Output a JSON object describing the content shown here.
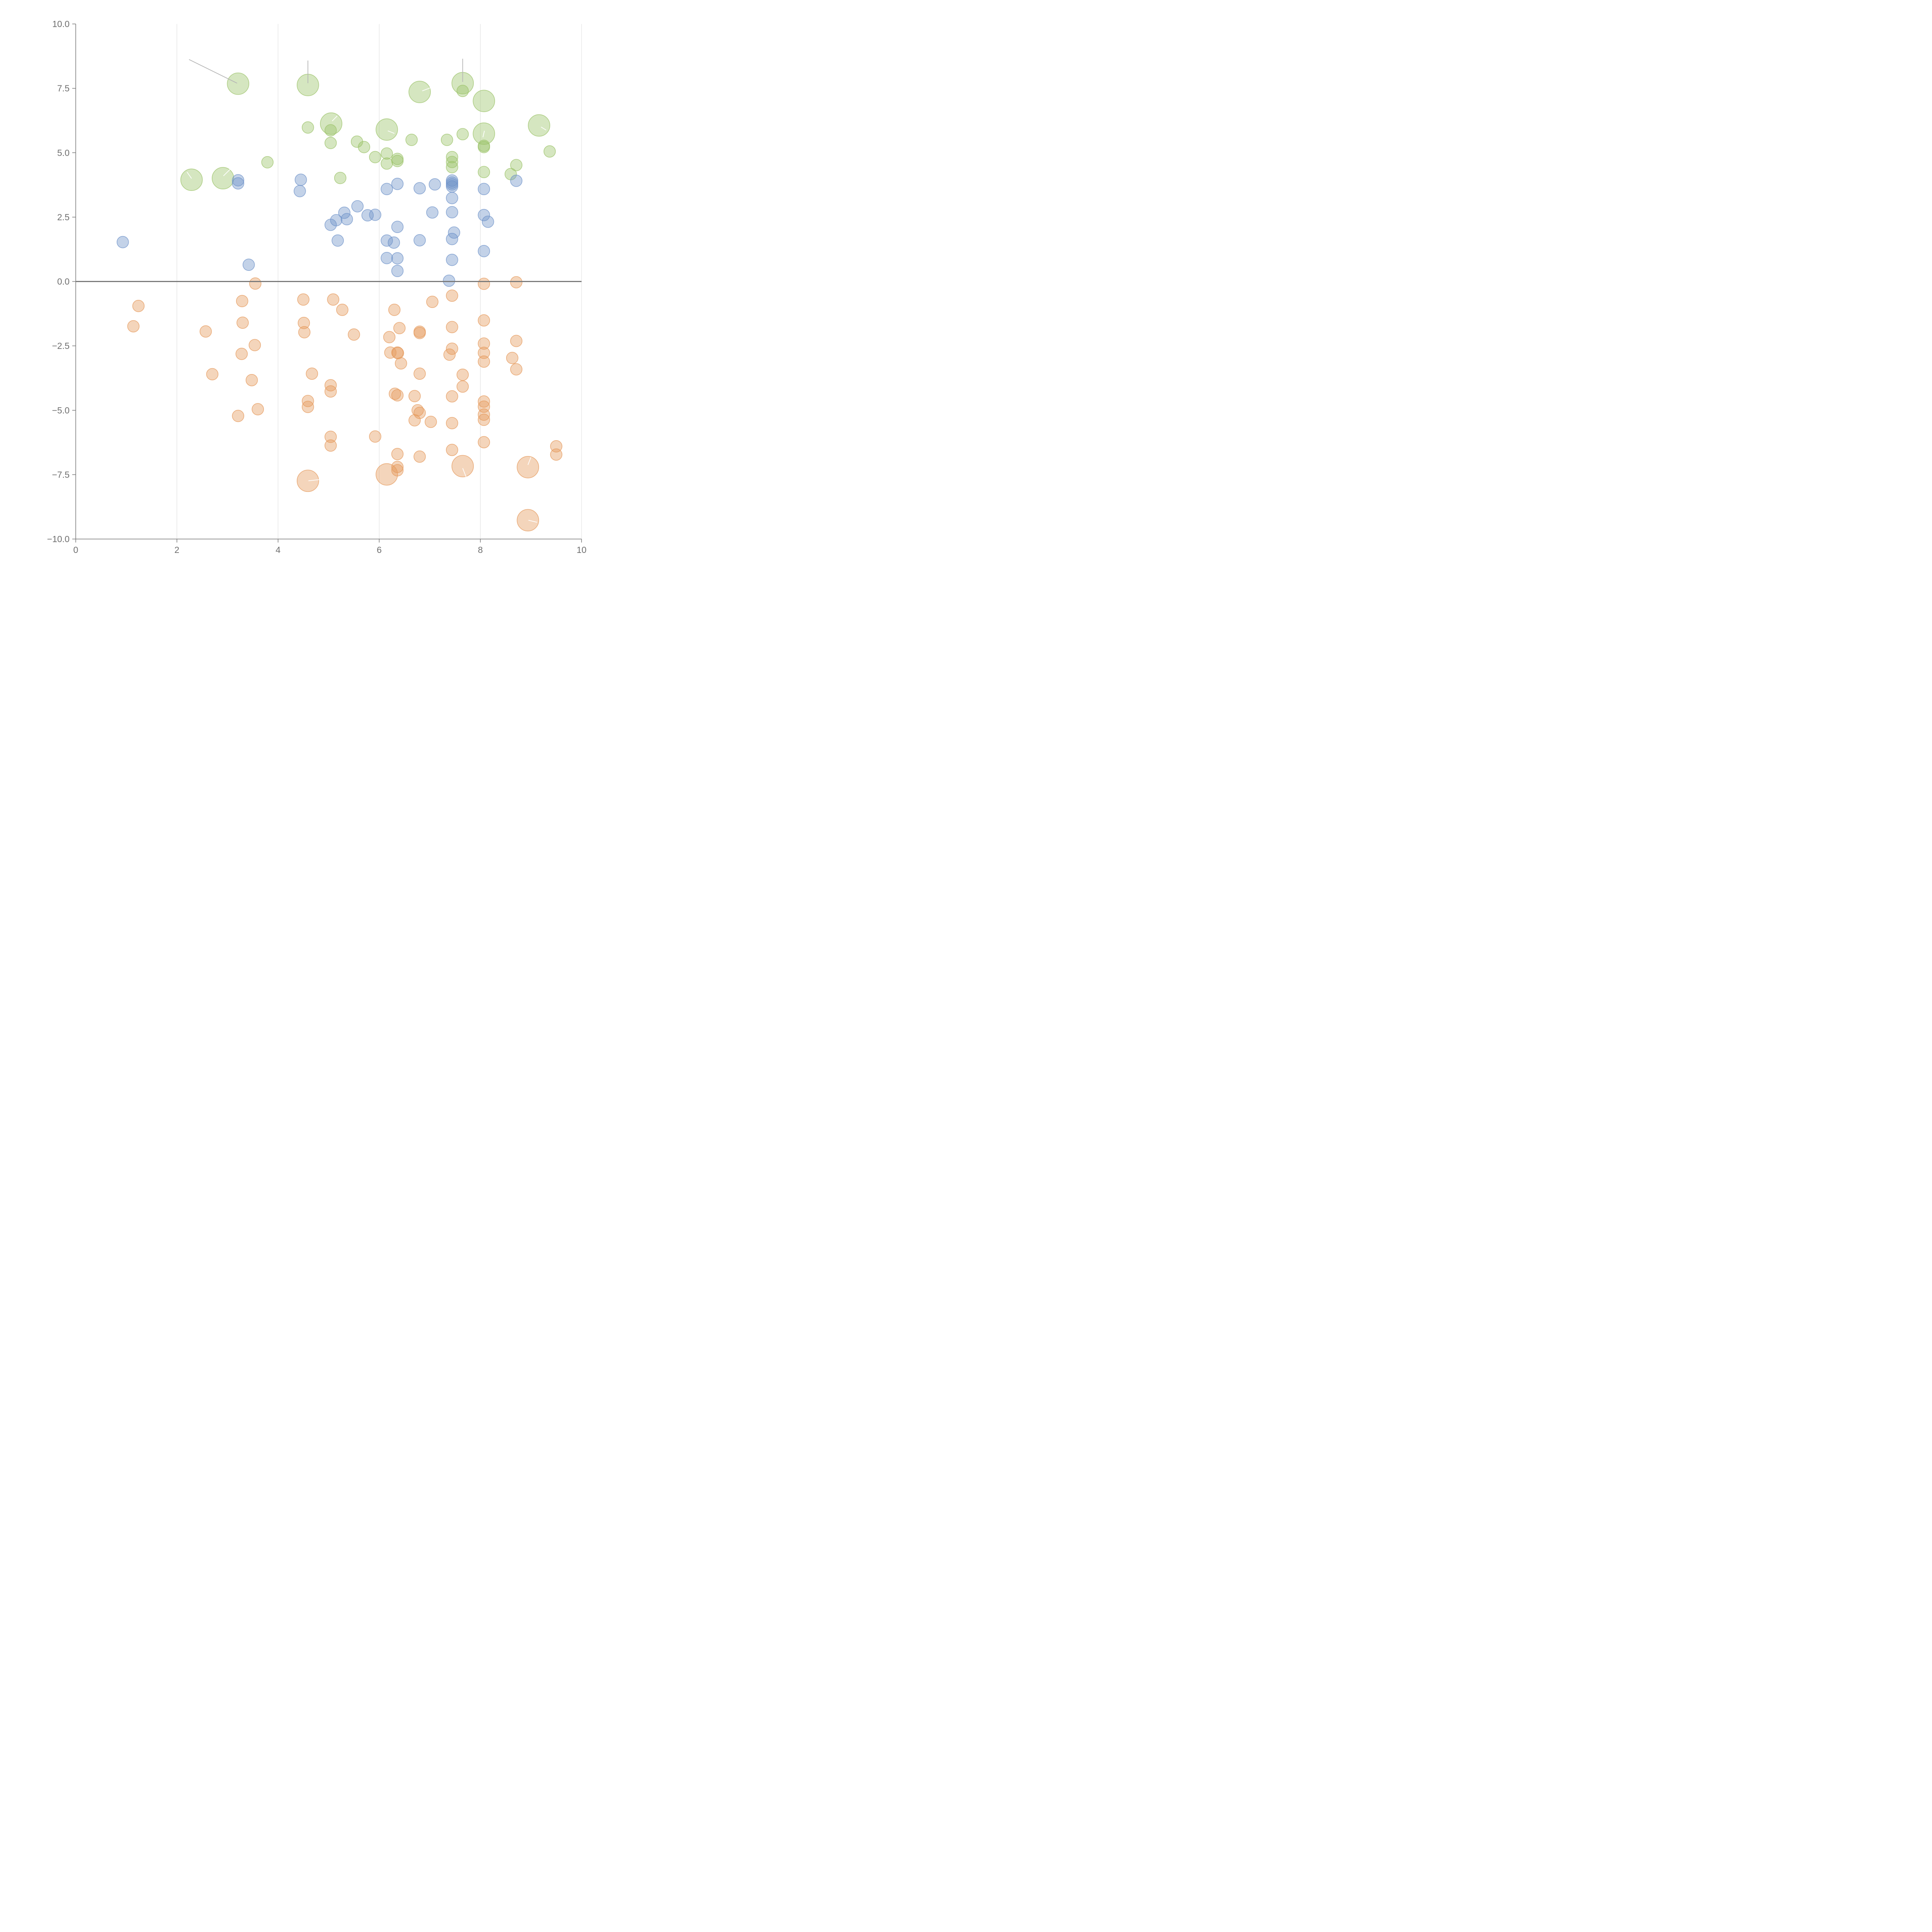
{
  "chart_data": {
    "type": "scatter",
    "subtype": "bubble",
    "title": "",
    "xlabel": "",
    "ylabel": "",
    "xlim": [
      0,
      10
    ],
    "ylim": [
      -10,
      10
    ],
    "x_ticks": [
      0,
      2,
      4,
      6,
      8,
      10
    ],
    "y_ticks": [
      -10,
      -7.5,
      -5,
      -2.5,
      0,
      2.5,
      5,
      7.5,
      10
    ],
    "x_tick_labels": [
      "0",
      "2",
      "4",
      "6",
      "8",
      "10"
    ],
    "y_tick_labels": [
      "−10.0",
      "−7.5",
      "−5.0",
      "−2.5",
      "0.0",
      "2.5",
      "5.0",
      "7.5",
      "10.0"
    ],
    "vertical_grid": true,
    "zero_line": true,
    "legend": "none",
    "colors": {
      "green": "#9cc36a",
      "blue": "#6f93c9",
      "orange": "#e59a5c",
      "axis": "#777777",
      "grid": "#dcdcdc"
    },
    "series": [
      {
        "name": "green",
        "color": "#9cc36a",
        "points": [
          {
            "x": 3.21,
            "y": 7.68,
            "r": 2
          },
          {
            "x": 4.59,
            "y": 7.63,
            "r": 2
          },
          {
            "x": 6.8,
            "y": 7.36,
            "r": 2
          },
          {
            "x": 7.65,
            "y": 7.7,
            "r": 2
          },
          {
            "x": 7.65,
            "y": 7.4,
            "r": 0
          },
          {
            "x": 8.07,
            "y": 7.01,
            "r": 2
          },
          {
            "x": 5.05,
            "y": 6.13,
            "r": 2
          },
          {
            "x": 4.59,
            "y": 5.98,
            "r": 0
          },
          {
            "x": 6.15,
            "y": 5.9,
            "r": 2
          },
          {
            "x": 5.04,
            "y": 5.87,
            "r": 0
          },
          {
            "x": 8.07,
            "y": 5.74,
            "r": 2
          },
          {
            "x": 9.16,
            "y": 6.06,
            "r": 2
          },
          {
            "x": 7.65,
            "y": 5.72,
            "r": 0
          },
          {
            "x": 6.64,
            "y": 5.5,
            "r": 0
          },
          {
            "x": 7.34,
            "y": 5.5,
            "r": 0
          },
          {
            "x": 5.56,
            "y": 5.43,
            "r": 0
          },
          {
            "x": 5.04,
            "y": 5.38,
            "r": 0
          },
          {
            "x": 5.7,
            "y": 5.22,
            "r": 0
          },
          {
            "x": 8.07,
            "y": 5.27,
            "r": 0
          },
          {
            "x": 8.07,
            "y": 5.22,
            "r": 0
          },
          {
            "x": 9.37,
            "y": 5.05,
            "r": 0
          },
          {
            "x": 6.15,
            "y": 4.97,
            "r": 0
          },
          {
            "x": 5.92,
            "y": 4.83,
            "r": 0
          },
          {
            "x": 7.44,
            "y": 4.83,
            "r": 0
          },
          {
            "x": 6.36,
            "y": 4.76,
            "r": 0
          },
          {
            "x": 6.36,
            "y": 4.68,
            "r": 0
          },
          {
            "x": 7.44,
            "y": 4.64,
            "r": 0
          },
          {
            "x": 6.15,
            "y": 4.58,
            "r": 0
          },
          {
            "x": 3.79,
            "y": 4.63,
            "r": 0
          },
          {
            "x": 8.71,
            "y": 4.52,
            "r": 0
          },
          {
            "x": 7.44,
            "y": 4.44,
            "r": 0
          },
          {
            "x": 8.07,
            "y": 4.25,
            "r": 0
          },
          {
            "x": 8.6,
            "y": 4.17,
            "r": 0
          },
          {
            "x": 5.23,
            "y": 4.02,
            "r": 0
          },
          {
            "x": 2.91,
            "y": 4.01,
            "r": 2
          },
          {
            "x": 2.29,
            "y": 3.95,
            "r": 2
          }
        ]
      },
      {
        "name": "blue",
        "color": "#6f93c9",
        "points": [
          {
            "x": 3.21,
            "y": 3.93,
            "r": 0
          },
          {
            "x": 3.21,
            "y": 3.81,
            "r": 0
          },
          {
            "x": 4.45,
            "y": 3.95,
            "r": 0
          },
          {
            "x": 4.43,
            "y": 3.51,
            "r": 0
          },
          {
            "x": 6.36,
            "y": 3.79,
            "r": 0
          },
          {
            "x": 6.15,
            "y": 3.59,
            "r": 0
          },
          {
            "x": 6.8,
            "y": 3.62,
            "r": 0
          },
          {
            "x": 7.1,
            "y": 3.77,
            "r": 0
          },
          {
            "x": 7.44,
            "y": 3.92,
            "r": 0
          },
          {
            "x": 7.44,
            "y": 3.84,
            "r": 0
          },
          {
            "x": 7.44,
            "y": 3.77,
            "r": 0
          },
          {
            "x": 7.44,
            "y": 3.69,
            "r": 0
          },
          {
            "x": 8.71,
            "y": 3.91,
            "r": 0
          },
          {
            "x": 8.07,
            "y": 3.59,
            "r": 0
          },
          {
            "x": 7.44,
            "y": 3.24,
            "r": 0
          },
          {
            "x": 5.57,
            "y": 2.92,
            "r": 0
          },
          {
            "x": 5.31,
            "y": 2.67,
            "r": 0
          },
          {
            "x": 7.05,
            "y": 2.68,
            "r": 0
          },
          {
            "x": 7.44,
            "y": 2.69,
            "r": 0
          },
          {
            "x": 5.92,
            "y": 2.59,
            "r": 0
          },
          {
            "x": 5.77,
            "y": 2.57,
            "r": 0
          },
          {
            "x": 8.07,
            "y": 2.58,
            "r": 0
          },
          {
            "x": 5.36,
            "y": 2.42,
            "r": 0
          },
          {
            "x": 5.15,
            "y": 2.38,
            "r": 0
          },
          {
            "x": 5.04,
            "y": 2.2,
            "r": 0
          },
          {
            "x": 8.15,
            "y": 2.32,
            "r": 0
          },
          {
            "x": 6.36,
            "y": 2.12,
            "r": 0
          },
          {
            "x": 7.48,
            "y": 1.9,
            "r": 0
          },
          {
            "x": 7.44,
            "y": 1.65,
            "r": 0
          },
          {
            "x": 0.93,
            "y": 1.53,
            "r": 0
          },
          {
            "x": 5.18,
            "y": 1.59,
            "r": 0
          },
          {
            "x": 6.15,
            "y": 1.59,
            "r": 0
          },
          {
            "x": 6.8,
            "y": 1.6,
            "r": 0
          },
          {
            "x": 6.29,
            "y": 1.51,
            "r": 0
          },
          {
            "x": 8.07,
            "y": 1.18,
            "r": 0
          },
          {
            "x": 6.15,
            "y": 0.91,
            "r": 0
          },
          {
            "x": 6.36,
            "y": 0.9,
            "r": 0
          },
          {
            "x": 7.44,
            "y": 0.84,
            "r": 0
          },
          {
            "x": 3.42,
            "y": 0.65,
            "r": 0
          },
          {
            "x": 6.36,
            "y": 0.41,
            "r": 0
          },
          {
            "x": 7.38,
            "y": 0.03,
            "r": 0
          }
        ]
      },
      {
        "name": "orange",
        "color": "#e59a5c",
        "points": [
          {
            "x": 3.55,
            "y": -0.08,
            "r": 0
          },
          {
            "x": 8.07,
            "y": -0.09,
            "r": 0
          },
          {
            "x": 8.71,
            "y": -0.03,
            "r": 0
          },
          {
            "x": 7.44,
            "y": -0.55,
            "r": 0
          },
          {
            "x": 4.5,
            "y": -0.7,
            "r": 0
          },
          {
            "x": 5.09,
            "y": -0.7,
            "r": 0
          },
          {
            "x": 3.29,
            "y": -0.76,
            "r": 0
          },
          {
            "x": 7.05,
            "y": -0.79,
            "r": 0
          },
          {
            "x": 1.24,
            "y": -0.95,
            "r": 0
          },
          {
            "x": 5.27,
            "y": -1.1,
            "r": 0
          },
          {
            "x": 6.3,
            "y": -1.1,
            "r": 0
          },
          {
            "x": 8.07,
            "y": -1.51,
            "r": 0
          },
          {
            "x": 4.51,
            "y": -1.61,
            "r": 0
          },
          {
            "x": 3.3,
            "y": -1.6,
            "r": 0
          },
          {
            "x": 1.14,
            "y": -1.74,
            "r": 0
          },
          {
            "x": 7.44,
            "y": -1.77,
            "r": 0
          },
          {
            "x": 6.4,
            "y": -1.81,
            "r": 0
          },
          {
            "x": 2.57,
            "y": -1.94,
            "r": 0
          },
          {
            "x": 4.52,
            "y": -1.97,
            "r": 0
          },
          {
            "x": 6.8,
            "y": -1.95,
            "r": 0
          },
          {
            "x": 6.8,
            "y": -2.0,
            "r": 0
          },
          {
            "x": 5.5,
            "y": -2.06,
            "r": 0
          },
          {
            "x": 6.2,
            "y": -2.16,
            "r": 0
          },
          {
            "x": 8.71,
            "y": -2.31,
            "r": 0
          },
          {
            "x": 8.07,
            "y": -2.41,
            "r": 0
          },
          {
            "x": 3.54,
            "y": -2.47,
            "r": 0
          },
          {
            "x": 7.44,
            "y": -2.61,
            "r": 0
          },
          {
            "x": 6.22,
            "y": -2.76,
            "r": 0
          },
          {
            "x": 6.36,
            "y": -2.76,
            "r": 0
          },
          {
            "x": 6.37,
            "y": -2.78,
            "r": 0
          },
          {
            "x": 3.28,
            "y": -2.81,
            "r": 0
          },
          {
            "x": 7.39,
            "y": -2.84,
            "r": 0
          },
          {
            "x": 8.07,
            "y": -2.77,
            "r": 0
          },
          {
            "x": 8.63,
            "y": -2.97,
            "r": 0
          },
          {
            "x": 8.07,
            "y": -3.11,
            "r": 0
          },
          {
            "x": 6.43,
            "y": -3.18,
            "r": 0
          },
          {
            "x": 8.71,
            "y": -3.41,
            "r": 0
          },
          {
            "x": 2.7,
            "y": -3.6,
            "r": 0
          },
          {
            "x": 4.67,
            "y": -3.58,
            "r": 0
          },
          {
            "x": 6.8,
            "y": -3.58,
            "r": 0
          },
          {
            "x": 7.65,
            "y": -3.62,
            "r": 0
          },
          {
            "x": 3.48,
            "y": -3.83,
            "r": 0
          },
          {
            "x": 7.65,
            "y": -4.08,
            "r": 0
          },
          {
            "x": 5.04,
            "y": -4.03,
            "r": 0
          },
          {
            "x": 5.04,
            "y": -4.27,
            "r": 0
          },
          {
            "x": 6.31,
            "y": -4.36,
            "r": 0
          },
          {
            "x": 6.36,
            "y": -4.42,
            "r": 0
          },
          {
            "x": 6.7,
            "y": -4.45,
            "r": 0
          },
          {
            "x": 7.44,
            "y": -4.46,
            "r": 0
          },
          {
            "x": 8.07,
            "y": -4.66,
            "r": 0
          },
          {
            "x": 4.59,
            "y": -4.64,
            "r": 0
          },
          {
            "x": 4.59,
            "y": -4.87,
            "r": 0
          },
          {
            "x": 8.07,
            "y": -4.86,
            "r": 0
          },
          {
            "x": 3.6,
            "y": -4.96,
            "r": 0
          },
          {
            "x": 6.76,
            "y": -5.0,
            "r": 0
          },
          {
            "x": 6.8,
            "y": -5.1,
            "r": 0
          },
          {
            "x": 8.07,
            "y": -5.17,
            "r": 0
          },
          {
            "x": 3.21,
            "y": -5.22,
            "r": 0
          },
          {
            "x": 8.07,
            "y": -5.37,
            "r": 0
          },
          {
            "x": 6.7,
            "y": -5.39,
            "r": 0
          },
          {
            "x": 7.02,
            "y": -5.45,
            "r": 0
          },
          {
            "x": 7.44,
            "y": -5.5,
            "r": 0
          },
          {
            "x": 5.04,
            "y": -6.03,
            "r": 0
          },
          {
            "x": 5.92,
            "y": -6.02,
            "r": 0
          },
          {
            "x": 8.07,
            "y": -6.24,
            "r": 0
          },
          {
            "x": 5.04,
            "y": -6.37,
            "r": 0
          },
          {
            "x": 9.5,
            "y": -6.4,
            "r": 0
          },
          {
            "x": 7.44,
            "y": -6.54,
            "r": 0
          },
          {
            "x": 6.36,
            "y": -6.7,
            "r": 0
          },
          {
            "x": 9.5,
            "y": -6.72,
            "r": 0
          },
          {
            "x": 6.8,
            "y": -6.8,
            "r": 0
          },
          {
            "x": 7.65,
            "y": -7.17,
            "r": 2
          },
          {
            "x": 8.94,
            "y": -7.21,
            "r": 2
          },
          {
            "x": 6.36,
            "y": -7.2,
            "r": 0
          },
          {
            "x": 6.36,
            "y": -7.33,
            "r": 0
          },
          {
            "x": 6.15,
            "y": -7.49,
            "r": 2
          },
          {
            "x": 4.59,
            "y": -7.74,
            "r": 2
          },
          {
            "x": 8.94,
            "y": -9.27,
            "r": 2
          }
        ]
      }
    ]
  }
}
